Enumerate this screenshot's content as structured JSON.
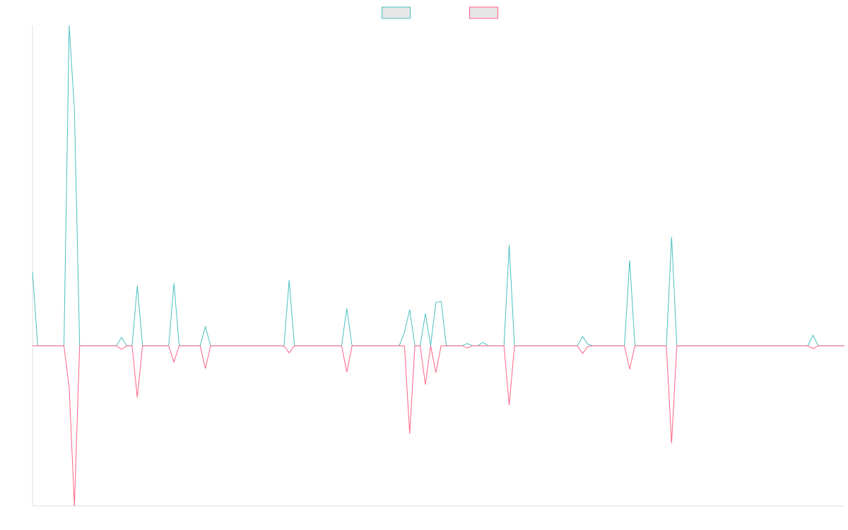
{
  "chart_data": {
    "type": "line",
    "x": [
      0,
      1,
      6,
      7,
      8,
      9,
      16,
      17,
      18,
      19,
      20,
      21,
      26,
      27,
      28,
      32,
      33,
      34,
      48,
      49,
      50,
      59,
      60,
      61,
      70,
      71,
      72,
      73,
      74,
      75,
      76,
      77,
      78,
      79,
      82,
      83,
      84,
      85,
      86,
      87,
      90,
      91,
      92,
      104,
      105,
      106,
      107,
      113,
      114,
      115,
      121,
      122,
      123,
      148,
      149,
      150,
      155
    ],
    "series": [
      {
        "color": "#4bc0c0",
        "values": [
          23,
          0,
          0,
          100,
          73.5,
          0,
          0,
          2.6,
          0,
          0,
          18.8,
          0,
          0,
          19.6,
          0,
          0,
          6,
          0,
          0,
          20.5,
          0,
          0,
          11.7,
          0,
          0,
          4.2,
          11.3,
          0,
          0,
          10.1,
          0,
          13.5,
          13.9,
          0,
          0,
          0.7,
          0,
          0,
          1.1,
          0,
          0,
          31.5,
          0,
          0,
          2.9,
          0.5,
          0,
          0,
          26.7,
          0,
          0,
          34,
          0,
          0,
          3.3,
          0,
          0
        ]
      },
      {
        "color": "#ff6384",
        "values": [
          0,
          0,
          0,
          -13,
          -50,
          0,
          0,
          -1.1,
          0,
          0,
          -16.1,
          0,
          0,
          -5.1,
          0,
          0,
          -7.1,
          0,
          0,
          -2.2,
          0,
          0,
          -8.2,
          0,
          0,
          0,
          -27.4,
          0,
          0,
          -12.1,
          0,
          -8.4,
          0,
          0,
          0,
          -0.7,
          0,
          0,
          0,
          0,
          0,
          -18.5,
          0,
          0,
          -2.4,
          -0.2,
          0,
          0,
          -7.3,
          0,
          0,
          -30.4,
          0,
          0,
          -0.9,
          0,
          0
        ]
      }
    ],
    "xlim": [
      0,
      155
    ],
    "ylim": [
      -50,
      100
    ],
    "grid": false,
    "legend": "top"
  }
}
